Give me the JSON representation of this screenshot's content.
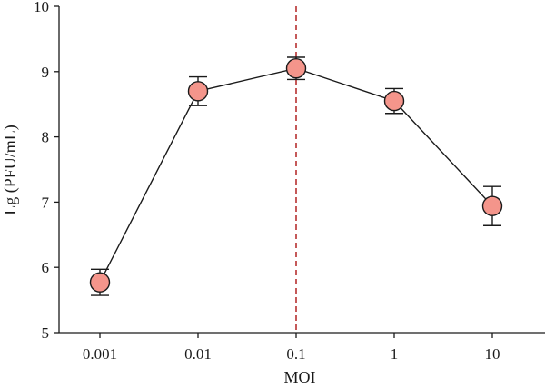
{
  "chart_data": {
    "type": "line",
    "xlabel": "MOI",
    "ylabel": "Lg (PFU/mL)",
    "categories": [
      "0.001",
      "0.01",
      "0.1",
      "1",
      "10"
    ],
    "ylim": [
      5,
      10
    ],
    "yticks": [
      5,
      6,
      7,
      8,
      9,
      10
    ],
    "series": [
      {
        "values": [
          5.77,
          8.7,
          9.05,
          8.55,
          6.94
        ],
        "error": [
          0.2,
          0.22,
          0.17,
          0.19,
          0.3
        ]
      }
    ],
    "reference_line": {
      "category": "0.1",
      "style": "dashed"
    },
    "grid": false,
    "legend": "none",
    "colors": {
      "marker_fill": "#f4958b",
      "marker_stroke": "#1a1a1a",
      "line": "#1a1a1a",
      "reference_line": "#b22222",
      "axis": "#1a1a1a"
    }
  }
}
